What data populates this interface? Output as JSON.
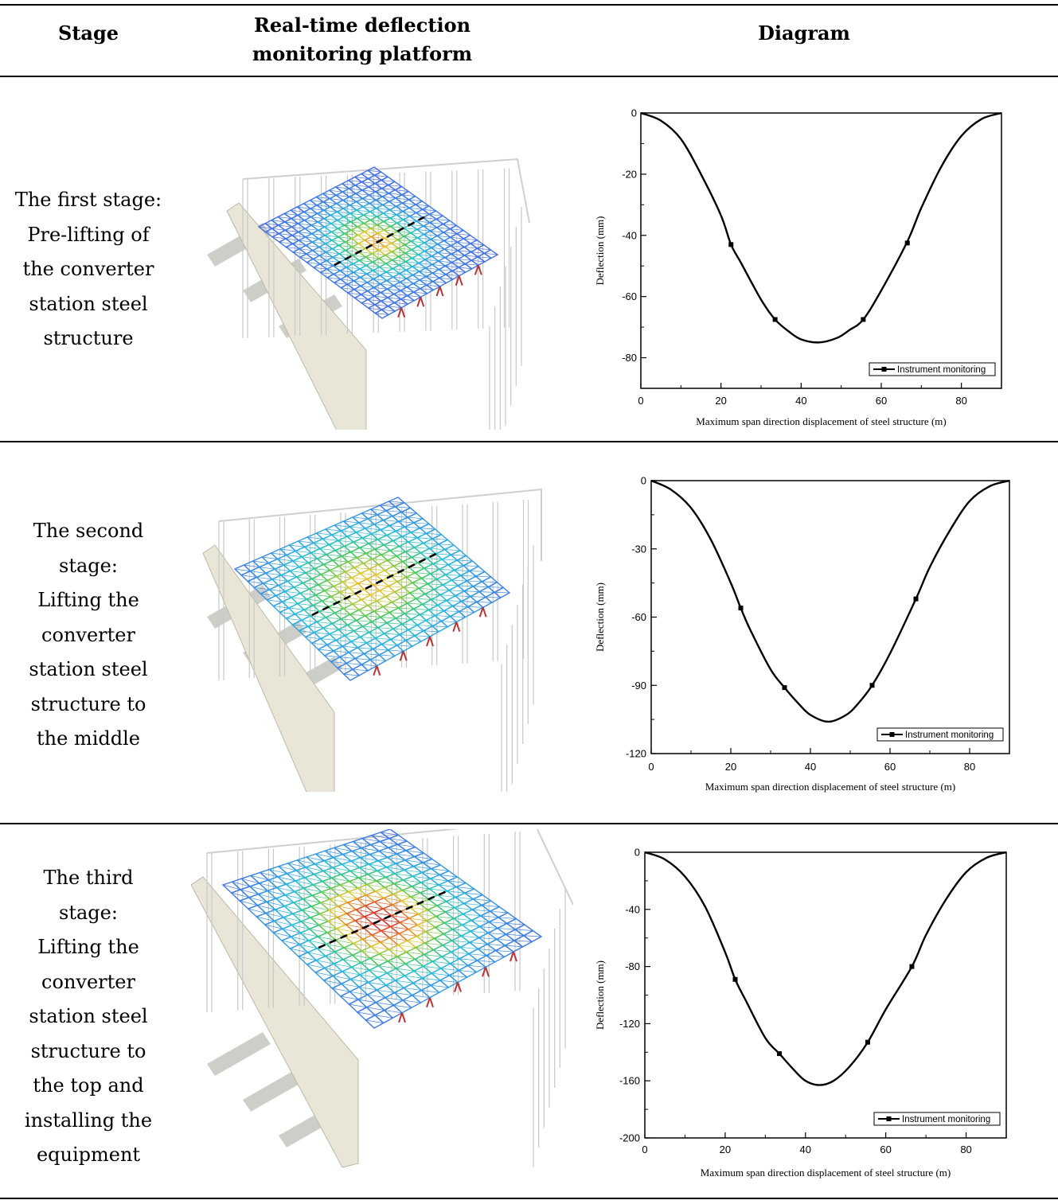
{
  "table": {
    "headers": {
      "stage": "Stage",
      "platform_line1": "Real-time deflection",
      "platform_line2": "monitoring platform",
      "diagram": "Diagram"
    },
    "rows": [
      {
        "stage_lines": [
          "The first stage:",
          "Pre-lifting of",
          "the converter",
          "station steel",
          "structure"
        ],
        "model_color_level": "low"
      },
      {
        "stage_lines": [
          "The second",
          "stage:",
          "Lifting the",
          "converter",
          "station steel",
          "structure to",
          "the middle"
        ],
        "model_color_level": "medium"
      },
      {
        "stage_lines": [
          "The third",
          "stage:",
          "Lifting the",
          "converter",
          "station steel",
          "structure to",
          "the top and",
          "installing the",
          "equipment"
        ],
        "model_color_level": "high"
      }
    ]
  },
  "colors": {
    "line": "#000000",
    "rule": "#000000"
  },
  "chart_data": [
    {
      "type": "line",
      "xlabel": "Maximum span direction displacement of steel structure (m)",
      "ylabel": "Deflection (mm)",
      "xlim": [
        0,
        90
      ],
      "ylim": [
        -90,
        0
      ],
      "xticks": [
        0,
        20,
        40,
        60,
        80
      ],
      "yticks": [
        0,
        -20,
        -40,
        -60,
        -80
      ],
      "series": [
        {
          "name": "Instrument monitoring",
          "curve": {
            "x": [
              0,
              5,
              10,
              15,
              20,
              22.5,
              25,
              30,
              33.5,
              37,
              40,
              44.5,
              49,
              52,
              55.5,
              60,
              66.5,
              70,
              75,
              80,
              85,
              90
            ],
            "y": [
              0,
              -2.5,
              -8.5,
              -20,
              -33.5,
              -43,
              -49,
              -61,
              -67.5,
              -71.5,
              -74,
              -75,
              -73.5,
              -71,
              -67.5,
              -58,
              -42,
              -31,
              -17.5,
              -7.5,
              -2,
              0
            ]
          },
          "markers": {
            "x": [
              22.5,
              33.5,
              55.5,
              66.5
            ],
            "y": [
              -43,
              -67.5,
              -67.5,
              -42.5
            ]
          }
        }
      ],
      "legend": "bottom-right",
      "grid": false
    },
    {
      "type": "line",
      "xlabel": "Maximum span direction displacement of steel structure (m)",
      "ylabel": "Deflection (mm)",
      "xlim": [
        0,
        90
      ],
      "ylim": [
        -120,
        0
      ],
      "xticks": [
        0,
        20,
        40,
        60,
        80
      ],
      "yticks": [
        0,
        -30,
        -60,
        -90,
        -120
      ],
      "series": [
        {
          "name": "Instrument monitoring",
          "curve": {
            "x": [
              0,
              5,
              10,
              15,
              20,
              22.5,
              25,
              30,
              33.5,
              37,
              40,
              44.5,
              49,
              52,
              55.5,
              60,
              66.5,
              70,
              75,
              80,
              85,
              90
            ],
            "y": [
              0,
              -4,
              -12,
              -26,
              -45,
              -56,
              -66,
              -83,
              -91,
              -98,
              -103,
              -106,
              -103,
              -98,
              -90,
              -76,
              -52,
              -38,
              -22,
              -9,
              -2.5,
              0
            ]
          },
          "markers": {
            "x": [
              22.5,
              33.5,
              55.5,
              66.5
            ],
            "y": [
              -56,
              -91,
              -90,
              -52
            ]
          }
        }
      ],
      "legend": "bottom-right",
      "grid": false
    },
    {
      "type": "line",
      "xlabel": "Maximum span direction displacement of steel structure (m)",
      "ylabel": "Deflection (mm)",
      "xlim": [
        0,
        90
      ],
      "ylim": [
        -200,
        0
      ],
      "xticks": [
        0,
        20,
        40,
        60,
        80
      ],
      "yticks": [
        0,
        -40,
        -80,
        -120,
        -160,
        -200
      ],
      "series": [
        {
          "name": "Instrument monitoring",
          "curve": {
            "x": [
              0,
              5,
              10,
              15,
              20,
              22.5,
              25,
              30,
              33.5,
              37,
              40,
              43.5,
              47,
              51,
              55.5,
              60,
              66.5,
              70,
              75,
              80,
              85,
              90
            ],
            "y": [
              0,
              -5,
              -17,
              -38,
              -70,
              -89,
              -103,
              -130,
              -141,
              -152,
              -160,
              -163,
              -160,
              -150,
              -133,
              -110,
              -80,
              -58,
              -33,
              -14,
              -4,
              0
            ]
          },
          "markers": {
            "x": [
              22.5,
              33.5,
              55.5,
              66.5
            ],
            "y": [
              -89,
              -141,
              -133,
              -80
            ]
          }
        }
      ],
      "legend": "bottom-right",
      "grid": false
    }
  ]
}
